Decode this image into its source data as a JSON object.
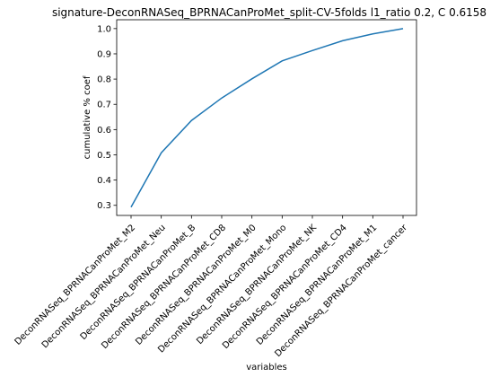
{
  "chart_data": {
    "type": "line",
    "title": "signature-DeconRNASeq_BPRNACanProMet_split-CV-5folds l1_ratio 0.2, C 0.6158",
    "xlabel": "variables",
    "ylabel": "cumulative % coef",
    "categories": [
      "DeconRNASeq_BPRNACanProMet_M2",
      "DeconRNASeq_BPRNACanProMet_Neu",
      "DeconRNASeq_BPRNACanProMet_B",
      "DeconRNASeq_BPRNACanProMet_CD8",
      "DeconRNASeq_BPRNACanProMet_M0",
      "DeconRNASeq_BPRNACanProMet_Mono",
      "DeconRNASeq_BPRNACanProMet_NK",
      "DeconRNASeq_BPRNACanProMet_CD4",
      "DeconRNASeq_BPRNACanProMet_M1",
      "DeconRNASeq_BPRNACanProMet_cancer"
    ],
    "series": [
      {
        "values": [
          0.293,
          0.508,
          0.636,
          0.725,
          0.801,
          0.872,
          0.913,
          0.952,
          0.979,
          1.0
        ]
      }
    ],
    "ylim": [
      0.26,
      1.035
    ],
    "yticks": [
      0.3,
      0.4,
      0.5,
      0.6,
      0.7,
      0.8,
      0.9,
      1.0
    ],
    "ytick_labels": [
      "0.3",
      "0.4",
      "0.5",
      "0.6",
      "0.7",
      "0.8",
      "0.9",
      "1.0"
    ],
    "grid": false,
    "line_color": "#1f77b4"
  }
}
